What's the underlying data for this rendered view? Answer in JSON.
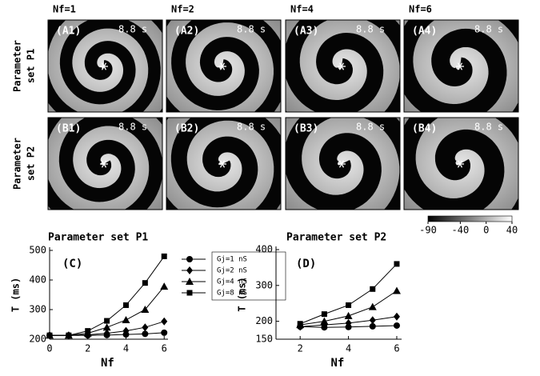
{
  "figure": {
    "column_headers": [
      "Nf=1",
      "Nf=2",
      "Nf=4",
      "Nf=6"
    ],
    "row_labels": [
      [
        "Parameter",
        "set P1"
      ],
      [
        "Parameter",
        "set P2"
      ]
    ],
    "panels": [
      [
        {
          "label": "(A1)",
          "time": "8.8 s"
        },
        {
          "label": "(A2)",
          "time": "8.8 s"
        },
        {
          "label": "(A3)",
          "time": "8.8 s"
        },
        {
          "label": "(A4)",
          "time": "8.8 s"
        }
      ],
      [
        {
          "label": "(B1)",
          "time": "8.8 s"
        },
        {
          "label": "(B2)",
          "time": "8.8 s"
        },
        {
          "label": "(B3)",
          "time": "8.8 s"
        },
        {
          "label": "(B4)",
          "time": "8.8 s"
        }
      ]
    ],
    "colorbar": {
      "lim": [
        -90,
        40
      ],
      "ticks": [
        -90,
        -40,
        0,
        40
      ]
    }
  },
  "chart_data": [
    {
      "type": "line",
      "title": "Parameter set P1",
      "annotation": "(C)",
      "x_label": "Nf",
      "y_label": "T (ms)",
      "x": [
        0,
        1,
        2,
        3,
        4,
        5,
        6
      ],
      "xlim": [
        0,
        6.2
      ],
      "xticks": [
        0,
        2,
        4,
        6
      ],
      "ylim": [
        200,
        500
      ],
      "yticks": [
        200,
        300,
        400,
        500
      ],
      "legend": "right",
      "series": [
        {
          "name": "Gj=1 nS",
          "marker": "circle",
          "color": "#000000",
          "values": [
            213,
            213,
            213,
            214,
            216,
            218,
            222
          ]
        },
        {
          "name": "Gj=2 nS",
          "marker": "diamond",
          "color": "#000000",
          "values": [
            213,
            213,
            215,
            220,
            228,
            240,
            260
          ]
        },
        {
          "name": "Gj=4 nS",
          "marker": "triangle",
          "color": "#000000",
          "values": [
            213,
            213,
            220,
            240,
            265,
            300,
            378
          ]
        },
        {
          "name": "Gj=8 nS",
          "marker": "square",
          "color": "#000000",
          "values": [
            213,
            213,
            228,
            262,
            315,
            390,
            480
          ]
        }
      ]
    },
    {
      "type": "line",
      "title": "Parameter set P2",
      "annotation": "(D)",
      "x_label": "Nf",
      "y_label": "T (ms)",
      "x": [
        2,
        3,
        4,
        5,
        6
      ],
      "xlim": [
        1,
        6.2
      ],
      "xticks": [
        2,
        4,
        6
      ],
      "ylim": [
        150,
        400
      ],
      "yticks": [
        150,
        200,
        300,
        400
      ],
      "series": [
        {
          "marker": "circle",
          "color": "#000000",
          "values": [
            185,
            183,
            184,
            186,
            188
          ]
        },
        {
          "marker": "diamond",
          "color": "#000000",
          "values": [
            185,
            190,
            195,
            203,
            213
          ]
        },
        {
          "marker": "triangle",
          "color": "#000000",
          "values": [
            190,
            200,
            215,
            240,
            285
          ]
        },
        {
          "marker": "square",
          "color": "#000000",
          "values": [
            193,
            220,
            245,
            290,
            360
          ]
        }
      ]
    }
  ]
}
